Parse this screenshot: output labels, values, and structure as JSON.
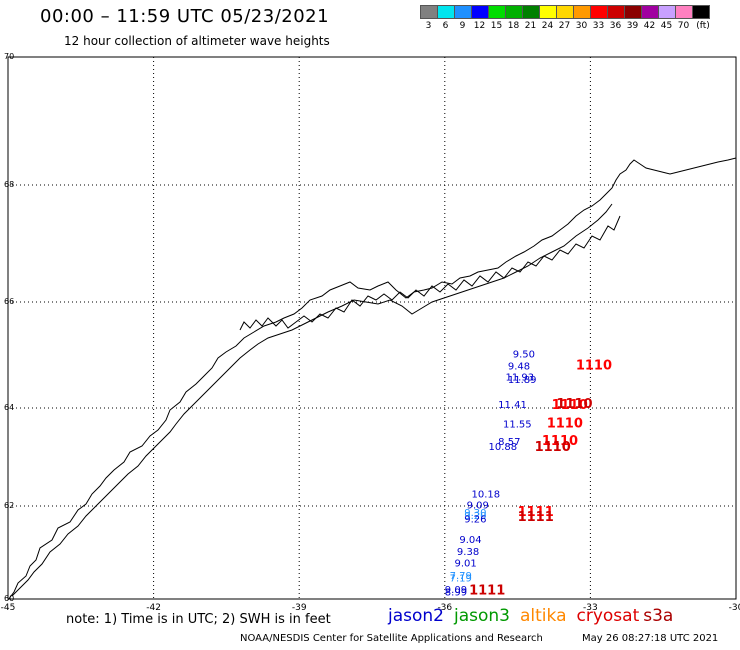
{
  "header": {
    "title": "00:00 – 11:59 UTC 05/23/2021",
    "subtitle": "12 hour collection of altimeter wave heights"
  },
  "color_scale": {
    "unit_label": "(ft)",
    "bins": [
      {
        "label": "3",
        "color": "#808080"
      },
      {
        "label": "6",
        "color": "#00e5ee"
      },
      {
        "label": "9",
        "color": "#1e90ff"
      },
      {
        "label": "12",
        "color": "#0000ff"
      },
      {
        "label": "15",
        "color": "#00dd00"
      },
      {
        "label": "18",
        "color": "#00b000"
      },
      {
        "label": "21",
        "color": "#008000"
      },
      {
        "label": "24",
        "color": "#ffff00"
      },
      {
        "label": "27",
        "color": "#ffd700"
      },
      {
        "label": "30",
        "color": "#ff9900"
      },
      {
        "label": "33",
        "color": "#ff0000"
      },
      {
        "label": "36",
        "color": "#cc0000"
      },
      {
        "label": "39",
        "color": "#8b0000"
      },
      {
        "label": "42",
        "color": "#a000a0"
      },
      {
        "label": "45",
        "color": "#c8a0ff"
      },
      {
        "label": "70",
        "color": "#ff80c0"
      },
      {
        "label": "",
        "color": "#000000"
      }
    ]
  },
  "map": {
    "lon_labels": [
      "-45",
      "-42",
      "-39",
      "-36",
      "-33",
      "-30"
    ],
    "lat_labels": [
      "70",
      "68",
      "66",
      "64",
      "62",
      "60"
    ],
    "lon_range": [
      -45,
      -30
    ],
    "lat_range": [
      60,
      70
    ]
  },
  "observations": [
    {
      "value": "9.50",
      "lon": -34.6,
      "lat": 64.95,
      "color": "#0000cc"
    },
    {
      "value": "9.48",
      "lon": -34.7,
      "lat": 64.73,
      "color": "#0000cc"
    },
    {
      "value": "11.93",
      "lon": -34.75,
      "lat": 64.52,
      "color": "#0000cc"
    },
    {
      "value": "11.89",
      "lon": -34.7,
      "lat": 64.47,
      "color": "#0000cc"
    },
    {
      "value": "11.41",
      "lon": -34.9,
      "lat": 64.0,
      "color": "#0000cc"
    },
    {
      "value": "11.55",
      "lon": -34.8,
      "lat": 63.6,
      "color": "#0000cc"
    },
    {
      "value": "8.57",
      "lon": -34.9,
      "lat": 63.25,
      "color": "#0000cc"
    },
    {
      "value": "10.88",
      "lon": -35.1,
      "lat": 63.14,
      "color": "#0000cc"
    },
    {
      "value": "10.18",
      "lon": -35.45,
      "lat": 62.17,
      "color": "#0000cc"
    },
    {
      "value": "9.09",
      "lon": -35.55,
      "lat": 61.95,
      "color": "#0000cc"
    },
    {
      "value": "9.30",
      "lon": -35.6,
      "lat": 61.78,
      "color": "#1e90ff"
    },
    {
      "value": "9.20",
      "lon": -35.6,
      "lat": 61.72,
      "color": "#1e90ff"
    },
    {
      "value": "9.26",
      "lon": -35.6,
      "lat": 61.64,
      "color": "#0000cc"
    },
    {
      "value": "9.04",
      "lon": -35.7,
      "lat": 61.2,
      "color": "#0000cc"
    },
    {
      "value": "9.38",
      "lon": -35.75,
      "lat": 60.95,
      "color": "#0000cc"
    },
    {
      "value": "9.01",
      "lon": -35.8,
      "lat": 60.7,
      "color": "#0000cc"
    },
    {
      "value": "7.79",
      "lon": -35.9,
      "lat": 60.43,
      "color": "#1e90ff"
    },
    {
      "value": "7.19",
      "lon": -35.9,
      "lat": 60.38,
      "color": "#1e90ff"
    },
    {
      "value": "9.09",
      "lon": -36.0,
      "lat": 60.13,
      "color": "#0000cc"
    },
    {
      "value": "8.99",
      "lon": -36.0,
      "lat": 60.08,
      "color": "#0000cc"
    },
    {
      "value": "1110",
      "lon": -33.3,
      "lat": 64.73,
      "color": "#ff0000",
      "bold": true
    },
    {
      "value": "1110",
      "lon": -33.8,
      "lat": 63.98,
      "color": "#ff0000",
      "bold": true
    },
    {
      "value": "1110",
      "lon": -33.7,
      "lat": 64.0,
      "color": "#cc0000",
      "bold": true
    },
    {
      "value": "1110",
      "lon": -33.9,
      "lat": 63.6,
      "color": "#ff0000",
      "bold": true
    },
    {
      "value": "1110",
      "lon": -34.0,
      "lat": 63.25,
      "color": "#ff0000",
      "bold": true
    },
    {
      "value": "1110",
      "lon": -34.15,
      "lat": 63.12,
      "color": "#cc0000",
      "bold": true
    },
    {
      "value": "1111",
      "lon": -34.5,
      "lat": 61.78,
      "color": "#ff0000",
      "bold": true
    },
    {
      "value": "1111",
      "lon": -34.5,
      "lat": 61.68,
      "color": "#cc0000",
      "bold": true
    },
    {
      "value": "1111",
      "lon": -35.5,
      "lat": 60.1,
      "color": "#cc0000",
      "bold": true
    }
  ],
  "satellites": [
    {
      "name": "jason2",
      "color": "#0000cc"
    },
    {
      "name": "jason3",
      "color": "#009900"
    },
    {
      "name": "altika",
      "color": "#ff8800"
    },
    {
      "name": "cryosat",
      "color": "#dd0000"
    },
    {
      "name": "s3a",
      "color": "#aa0000"
    }
  ],
  "footer": {
    "note": "note:  1) Time is in UTC; 2) SWH is in feet",
    "credit": "NOAA/NESDIS Center for Satellite Applications and Research",
    "timestamp": "May 26 08:27:18 UTC 2021"
  }
}
